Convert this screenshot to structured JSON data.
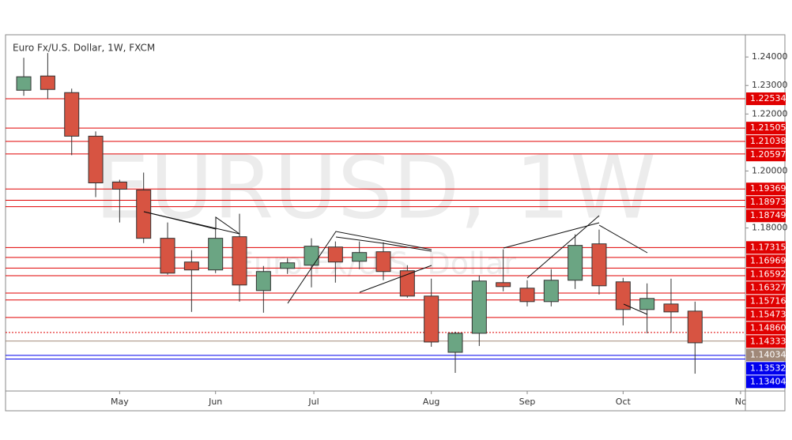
{
  "chart_data": {
    "type": "candlestick",
    "title": "Euro Fx/U.S. Dollar, 1W, FXCM",
    "watermark": "EURUSD, 1W",
    "watermark_subtitle": "Euro Fx/U.S. Dollar",
    "categories": [
      null,
      null,
      null,
      null,
      null,
      null,
      null,
      null,
      null,
      null,
      null,
      null,
      null,
      null,
      null,
      null,
      null,
      null,
      null,
      null,
      null,
      null,
      null,
      null,
      null,
      null,
      null,
      null,
      null
    ],
    "open": [
      1.22833,
      1.23333,
      1.2275,
      1.21222,
      1.19611,
      1.19333,
      1.17639,
      1.16806,
      1.16528,
      1.17694,
      1.15806,
      1.16583,
      1.16694,
      1.17333,
      1.16833,
      1.17167,
      1.165,
      1.15611,
      1.13639,
      1.14306,
      1.16083,
      1.15889,
      1.15417,
      1.16167,
      1.17444,
      1.16111,
      1.15139,
      1.15333,
      1.15083
    ],
    "high": [
      1.23972,
      1.24139,
      1.22889,
      1.21389,
      1.19694,
      1.19944,
      1.18194,
      1.17222,
      1.17972,
      1.185,
      1.16667,
      1.16944,
      1.17639,
      1.17528,
      1.17528,
      1.175,
      1.16694,
      1.16222,
      1.14361,
      1.16333,
      1.1725,
      1.16167,
      1.16556,
      1.17778,
      1.17944,
      1.1625,
      1.16056,
      1.16222,
      1.15417
    ],
    "low": [
      1.22639,
      1.22528,
      1.20556,
      1.19083,
      1.18194,
      1.17472,
      1.16361,
      1.15056,
      1.16417,
      1.15417,
      1.15028,
      1.16389,
      1.15917,
      1.16083,
      1.16556,
      1.16167,
      1.15556,
      1.13833,
      1.12917,
      1.13861,
      1.15778,
      1.1525,
      1.1525,
      1.15861,
      1.15667,
      1.14583,
      1.14306,
      1.14333,
      1.12889
    ],
    "close": [
      1.23306,
      1.22861,
      1.21222,
      1.19583,
      1.19361,
      1.17639,
      1.16417,
      1.16528,
      1.17639,
      1.16,
      1.16472,
      1.16778,
      1.17361,
      1.16806,
      1.17139,
      1.16472,
      1.15611,
      1.14,
      1.14306,
      1.16139,
      1.15944,
      1.15417,
      1.16167,
      1.17389,
      1.15972,
      1.15139,
      1.15528,
      1.15056,
      1.13972
    ],
    "up_color": "#6ba583",
    "down_color": "#d75442",
    "ylim": [
      1.1228,
      1.2478
    ],
    "yticks": [
      {
        "value": 1.24,
        "label": "1.24000"
      },
      {
        "value": 1.23,
        "label": "1.23000"
      },
      {
        "value": 1.22,
        "label": "1.22000"
      },
      {
        "value": 1.2,
        "label": "1.20000"
      },
      {
        "value": 1.18,
        "label": "1.18000"
      }
    ],
    "xlim": [
      -0.76,
      30.1
    ],
    "xticks": [
      {
        "value": 4,
        "label": "May"
      },
      {
        "value": 8,
        "label": "Jun"
      },
      {
        "value": 12.1,
        "label": "Jul"
      },
      {
        "value": 17,
        "label": "Aug"
      },
      {
        "value": 21,
        "label": "Sep"
      },
      {
        "value": 25,
        "label": "Oct"
      },
      {
        "value": 29.9,
        "label": "Nc"
      }
    ],
    "levels": [
      {
        "value": 1.22534,
        "label": "1.22534",
        "color": "#e00000"
      },
      {
        "value": 1.21505,
        "label": "1.21505",
        "color": "#e00000"
      },
      {
        "value": 1.21038,
        "label": "1.21038",
        "color": "#e00000"
      },
      {
        "value": 1.20597,
        "label": "1.20597",
        "color": "#e00000"
      },
      {
        "value": 1.19369,
        "label": "1.19369",
        "color": "#e00000"
      },
      {
        "value": 1.18973,
        "label": "1.18973",
        "color": "#e00000"
      },
      {
        "value": 1.18749,
        "label": "1.18749",
        "color": "#e00000"
      },
      {
        "value": 1.17315,
        "label": "1.17315",
        "color": "#e00000"
      },
      {
        "value": 1.16969,
        "label": "1.16969",
        "color": "#e00000"
      },
      {
        "value": 1.16592,
        "label": "1.16592",
        "color": "#e00000"
      },
      {
        "value": 1.16327,
        "label": "1.16327",
        "color": "#e00000"
      },
      {
        "value": 1.15716,
        "label": "1.15716",
        "color": "#e00000"
      },
      {
        "value": 1.15473,
        "label": "1.15473",
        "color": "#e00000"
      },
      {
        "value": 1.1486,
        "label": "1.14860",
        "color": "#e00000"
      },
      {
        "value": 1.14333,
        "label": "1.14333",
        "color": "#e00000",
        "dotted": true
      },
      {
        "value": 1.14034,
        "label": "1.14034",
        "color": "#a08878"
      },
      {
        "value": 1.13532,
        "label": "1.13532",
        "color": "#0000ee"
      },
      {
        "value": 1.13404,
        "label": "1.13404",
        "color": "#0000ee"
      }
    ]
  }
}
